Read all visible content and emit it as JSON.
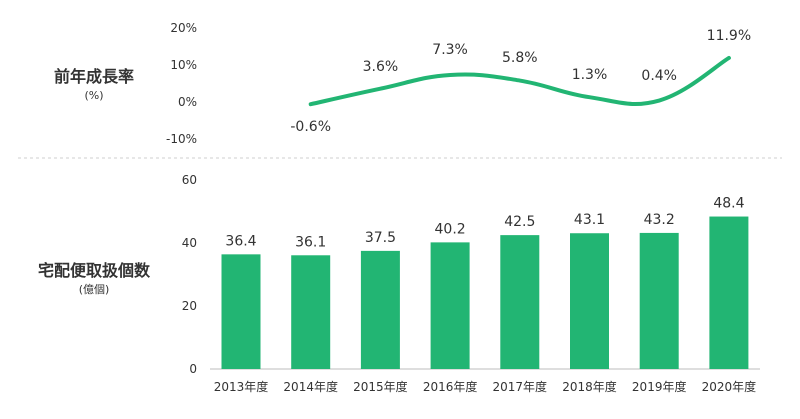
{
  "colors": {
    "accent": "#22b573",
    "divider": "#cfcfcf",
    "text": "#333333"
  },
  "chart_data": [
    {
      "type": "line",
      "title": "前年成長率",
      "unit": "(%)",
      "categories": [
        "2013年度",
        "2014年度",
        "2015年度",
        "2016年度",
        "2017年度",
        "2018年度",
        "2019年度",
        "2020年度"
      ],
      "x": [
        "2014年度",
        "2015年度",
        "2016年度",
        "2017年度",
        "2018年度",
        "2019年度",
        "2020年度"
      ],
      "values": [
        -0.6,
        3.6,
        7.3,
        5.8,
        1.3,
        0.4,
        11.9
      ],
      "labels": [
        "-0.6%",
        "3.6%",
        "7.3%",
        "5.8%",
        "1.3%",
        "0.4%",
        "11.9%"
      ],
      "yticks": [
        20,
        10,
        0,
        -10
      ],
      "ytick_labels": [
        "20%",
        "10%",
        "0%",
        "-10%"
      ],
      "ylim": [
        -10,
        20
      ],
      "grid": false,
      "smooth": true
    },
    {
      "type": "bar",
      "title": "宅配便取扱個数",
      "unit": "(億個)",
      "categories": [
        "2013年度",
        "2014年度",
        "2015年度",
        "2016年度",
        "2017年度",
        "2018年度",
        "2019年度",
        "2020年度"
      ],
      "values": [
        36.4,
        36.1,
        37.5,
        40.2,
        42.5,
        43.1,
        43.2,
        48.4
      ],
      "labels": [
        "36.4",
        "36.1",
        "37.5",
        "40.2",
        "42.5",
        "43.1",
        "43.2",
        "48.4"
      ],
      "yticks": [
        60,
        40,
        20,
        0
      ],
      "ytick_labels": [
        "60",
        "40",
        "20",
        "0"
      ],
      "ylim": [
        0,
        60
      ],
      "grid": false
    }
  ]
}
